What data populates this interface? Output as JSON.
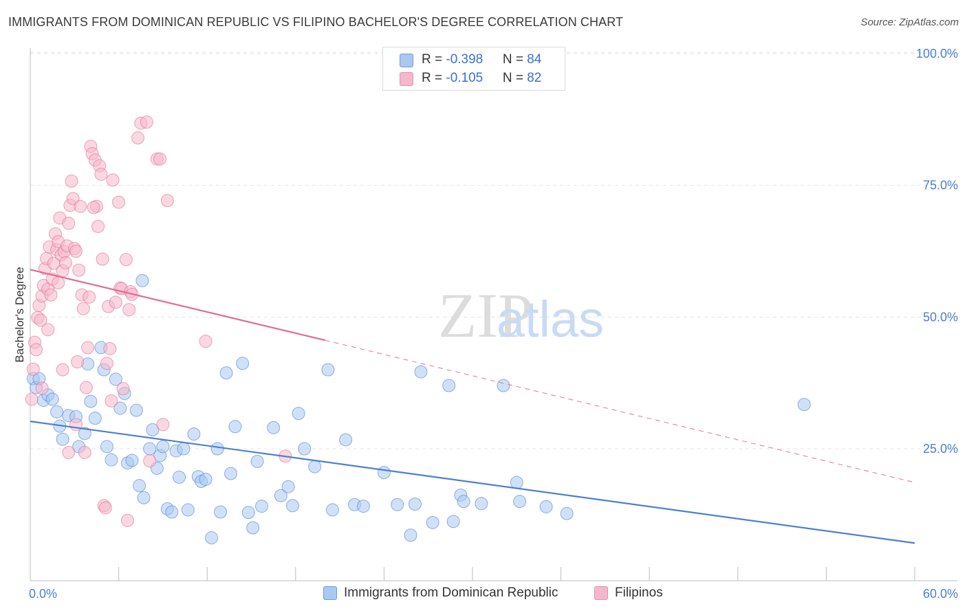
{
  "header": {
    "title": "IMMIGRANTS FROM DOMINICAN REPUBLIC VS FILIPINO BACHELOR'S DEGREE CORRELATION CHART",
    "source": "Source: ZipAtlas.com"
  },
  "watermark": {
    "zip": "ZIP",
    "atlas": "atlas"
  },
  "legend_top": {
    "rows": [
      {
        "r_label": "R = ",
        "r_value": "-0.398",
        "n_label": "N = ",
        "n_value": "84",
        "color": "#aac8f0"
      },
      {
        "r_label": "R = ",
        "r_value": "-0.105",
        "n_label": "N = ",
        "n_value": "82",
        "color": "#f5b8cb"
      }
    ]
  },
  "legend_bottom": [
    {
      "label": "Immigrants from Dominican Republic",
      "color": "#aac8f0"
    },
    {
      "label": "Filipinos",
      "color": "#f5b8cb"
    }
  ],
  "chart_data": {
    "type": "scatter",
    "title": "IMMIGRANTS FROM DOMINICAN REPUBLIC VS FILIPINO BACHELOR'S DEGREE CORRELATION CHART",
    "xlabel": "",
    "ylabel": "Bachelor's Degree",
    "xlim": [
      0,
      60
    ],
    "ylim": [
      0,
      105
    ],
    "x_tick_labels": [
      "0.0%",
      "60.0%"
    ],
    "y_tick_labels": [
      "25.0%",
      "50.0%",
      "75.0%",
      "100.0%"
    ],
    "y_ticks": [
      25,
      50,
      75,
      100
    ],
    "grid": true,
    "legend": "bottom",
    "series": [
      {
        "name": "Immigrants from Dominican Republic",
        "color": "#4a7fd4",
        "fill": "#aac8f0",
        "points": [
          [
            0.2,
            38.3
          ],
          [
            0.4,
            36.6
          ],
          [
            0.6,
            38.3
          ],
          [
            0.9,
            34.2
          ],
          [
            1.2,
            35.2
          ],
          [
            1.5,
            34.4
          ],
          [
            1.8,
            32.0
          ],
          [
            2.0,
            29.3
          ],
          [
            2.2,
            26.8
          ],
          [
            2.6,
            31.3
          ],
          [
            3.1,
            31.1
          ],
          [
            3.3,
            25.4
          ],
          [
            3.7,
            27.9
          ],
          [
            3.9,
            41.1
          ],
          [
            4.1,
            34.0
          ],
          [
            4.4,
            30.8
          ],
          [
            4.8,
            44.2
          ],
          [
            5.0,
            40.0
          ],
          [
            5.2,
            25.4
          ],
          [
            5.5,
            22.9
          ],
          [
            5.8,
            38.2
          ],
          [
            6.1,
            32.7
          ],
          [
            6.4,
            35.5
          ],
          [
            6.6,
            22.3
          ],
          [
            6.9,
            22.8
          ],
          [
            7.2,
            32.3
          ],
          [
            7.4,
            18.0
          ],
          [
            7.7,
            15.7
          ],
          [
            8.1,
            25.0
          ],
          [
            8.3,
            28.6
          ],
          [
            8.6,
            21.3
          ],
          [
            8.8,
            23.7
          ],
          [
            9.0,
            25.4
          ],
          [
            9.3,
            13.6
          ],
          [
            9.6,
            13.0
          ],
          [
            9.9,
            24.6
          ],
          [
            10.1,
            19.6
          ],
          [
            10.4,
            25.0
          ],
          [
            10.7,
            13.4
          ],
          [
            11.1,
            27.8
          ],
          [
            11.4,
            19.7
          ],
          [
            11.6,
            18.8
          ],
          [
            11.9,
            19.2
          ],
          [
            12.3,
            8.1
          ],
          [
            12.7,
            25.0
          ],
          [
            12.9,
            13.0
          ],
          [
            13.3,
            39.4
          ],
          [
            13.6,
            20.3
          ],
          [
            13.9,
            29.2
          ],
          [
            14.4,
            41.2
          ],
          [
            14.8,
            12.9
          ],
          [
            15.1,
            10.0
          ],
          [
            15.4,
            22.6
          ],
          [
            15.7,
            14.1
          ],
          [
            16.5,
            29.0
          ],
          [
            17.0,
            16.1
          ],
          [
            17.5,
            17.8
          ],
          [
            17.8,
            14.2
          ],
          [
            18.2,
            31.7
          ],
          [
            18.6,
            25.0
          ],
          [
            19.3,
            21.6
          ],
          [
            20.2,
            40.0
          ],
          [
            20.5,
            13.4
          ],
          [
            21.4,
            26.7
          ],
          [
            22.0,
            14.4
          ],
          [
            22.6,
            14.1
          ],
          [
            24.0,
            20.5
          ],
          [
            24.9,
            14.4
          ],
          [
            25.8,
            8.6
          ],
          [
            26.1,
            14.5
          ],
          [
            26.5,
            39.6
          ],
          [
            27.3,
            11.0
          ],
          [
            28.4,
            37.0
          ],
          [
            28.7,
            11.2
          ],
          [
            29.2,
            16.2
          ],
          [
            29.4,
            15.0
          ],
          [
            30.6,
            14.6
          ],
          [
            32.1,
            37.0
          ],
          [
            33.0,
            18.6
          ],
          [
            33.2,
            15.0
          ],
          [
            35.0,
            14.0
          ],
          [
            36.4,
            12.7
          ],
          [
            52.5,
            33.4
          ],
          [
            7.6,
            56.9
          ]
        ],
        "trend": [
          [
            0,
            30.2
          ],
          [
            60,
            7.1
          ]
        ]
      },
      {
        "name": "Filipinos",
        "color": "#e06b93",
        "fill": "#f5b8cb",
        "points": [
          [
            0.1,
            34.4
          ],
          [
            0.2,
            40.1
          ],
          [
            0.3,
            45.2
          ],
          [
            0.4,
            43.8
          ],
          [
            0.5,
            49.9
          ],
          [
            0.6,
            52.2
          ],
          [
            0.7,
            49.4
          ],
          [
            0.8,
            54.0
          ],
          [
            0.9,
            56.0
          ],
          [
            1.0,
            59.2
          ],
          [
            1.1,
            61.1
          ],
          [
            1.2,
            55.3
          ],
          [
            1.3,
            63.3
          ],
          [
            1.4,
            54.2
          ],
          [
            1.5,
            57.2
          ],
          [
            1.6,
            60.2
          ],
          [
            1.7,
            65.8
          ],
          [
            1.8,
            62.8
          ],
          [
            1.9,
            64.3
          ],
          [
            2.0,
            68.8
          ],
          [
            2.1,
            61.8
          ],
          [
            2.2,
            58.8
          ],
          [
            2.3,
            62.4
          ],
          [
            2.4,
            60.3
          ],
          [
            2.5,
            63.5
          ],
          [
            2.6,
            67.8
          ],
          [
            2.7,
            71.2
          ],
          [
            2.8,
            75.8
          ],
          [
            2.9,
            72.5
          ],
          [
            3.0,
            63.0
          ],
          [
            3.1,
            62.5
          ],
          [
            3.2,
            41.5
          ],
          [
            3.3,
            58.9
          ],
          [
            3.4,
            71.0
          ],
          [
            3.5,
            54.2
          ],
          [
            3.6,
            51.6
          ],
          [
            3.7,
            24.3
          ],
          [
            3.8,
            36.6
          ],
          [
            3.9,
            44.2
          ],
          [
            4.0,
            53.8
          ],
          [
            4.1,
            82.4
          ],
          [
            4.2,
            81.0
          ],
          [
            4.4,
            79.8
          ],
          [
            4.5,
            71.0
          ],
          [
            4.6,
            67.2
          ],
          [
            4.7,
            78.7
          ],
          [
            4.8,
            77.1
          ],
          [
            4.9,
            61.0
          ],
          [
            5.0,
            14.2
          ],
          [
            5.1,
            13.8
          ],
          [
            5.2,
            41.2
          ],
          [
            5.3,
            52.0
          ],
          [
            5.4,
            44.0
          ],
          [
            5.5,
            34.1
          ],
          [
            5.6,
            76.0
          ],
          [
            5.8,
            52.8
          ],
          [
            6.0,
            71.8
          ],
          [
            6.1,
            55.5
          ],
          [
            6.2,
            55.4
          ],
          [
            6.3,
            36.4
          ],
          [
            6.5,
            60.9
          ],
          [
            6.6,
            11.4
          ],
          [
            6.7,
            51.4
          ],
          [
            6.8,
            54.8
          ],
          [
            6.9,
            54.3
          ],
          [
            7.3,
            84.0
          ],
          [
            7.5,
            86.8
          ],
          [
            7.9,
            87.0
          ],
          [
            8.1,
            22.7
          ],
          [
            8.6,
            80.0
          ],
          [
            8.8,
            80.0
          ],
          [
            9.0,
            29.6
          ],
          [
            9.3,
            72.1
          ],
          [
            11.9,
            45.4
          ],
          [
            17.3,
            23.6
          ],
          [
            3.1,
            29.6
          ],
          [
            2.2,
            40.0
          ],
          [
            1.2,
            47.6
          ],
          [
            0.8,
            36.5
          ],
          [
            1.9,
            56.5
          ],
          [
            4.3,
            70.8
          ],
          [
            2.6,
            24.3
          ]
        ],
        "trend": [
          [
            0,
            59.0
          ],
          [
            20,
            45.6
          ]
        ],
        "trend_dashed": [
          [
            20,
            45.6
          ],
          [
            60,
            18.6
          ]
        ]
      }
    ]
  }
}
